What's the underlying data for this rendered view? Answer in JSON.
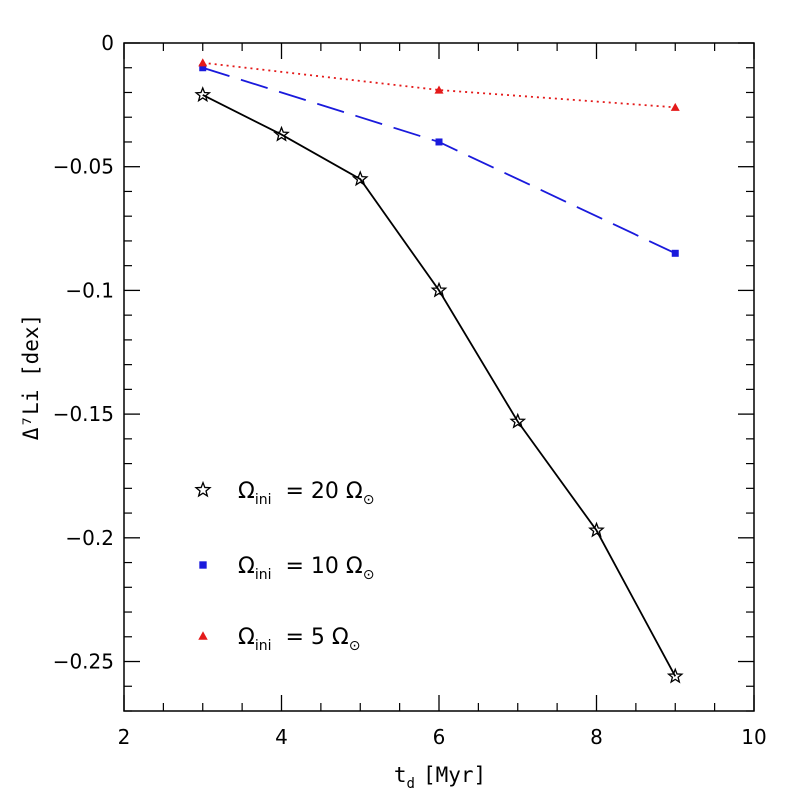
{
  "chart_data": {
    "type": "line",
    "xlabel": {
      "main": "t",
      "sub": "d",
      "unit": "[Myr]"
    },
    "ylabel": {
      "text": "Δ⁷Li [dex]"
    },
    "xlim": [
      2,
      10
    ],
    "ylim": [
      -0.27,
      0
    ],
    "x_ticks": [
      2,
      4,
      6,
      8,
      10
    ],
    "x_tick_labels": [
      "2",
      "4",
      "6",
      "8",
      "10"
    ],
    "y_ticks": [
      0,
      -0.05,
      -0.1,
      -0.15,
      -0.2,
      -0.25
    ],
    "y_tick_labels": [
      "0",
      "−0.05",
      "−0.1",
      "−0.15",
      "−0.2",
      "−0.25"
    ],
    "grid": false,
    "legend_position": "bottom-left",
    "series": [
      {
        "legend": {
          "symbol": "Ω",
          "sub": "ini",
          "value": "= 20",
          "unit": "Ω",
          "unit_sub": "⊙"
        },
        "color": "#000000",
        "line_style": "solid",
        "marker": "star-open",
        "x": [
          3,
          4,
          5,
          6,
          7,
          8,
          9
        ],
        "y": [
          -0.021,
          -0.037,
          -0.055,
          -0.1,
          -0.153,
          -0.197,
          -0.256
        ]
      },
      {
        "legend": {
          "symbol": "Ω",
          "sub": "ini",
          "value": "= 10",
          "unit": "Ω",
          "unit_sub": "⊙"
        },
        "color": "#1a1adc",
        "line_style": "dashed",
        "marker": "square",
        "x": [
          3,
          6,
          9
        ],
        "y": [
          -0.01,
          -0.04,
          -0.085
        ]
      },
      {
        "legend": {
          "symbol": "Ω",
          "sub": "ini",
          "value": "= 5",
          "unit": "Ω",
          "unit_sub": "⊙"
        },
        "color": "#e41a1a",
        "line_style": "dotted",
        "marker": "triangle",
        "x": [
          3,
          6,
          9
        ],
        "y": [
          -0.008,
          -0.019,
          -0.026
        ]
      }
    ]
  }
}
